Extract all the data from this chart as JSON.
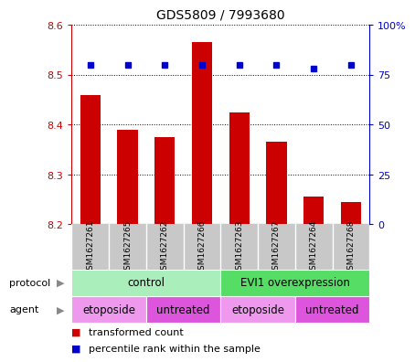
{
  "title": "GDS5809 / 7993680",
  "samples": [
    "GSM1627261",
    "GSM1627265",
    "GSM1627262",
    "GSM1627266",
    "GSM1627263",
    "GSM1627267",
    "GSM1627264",
    "GSM1627268"
  ],
  "bar_values": [
    8.46,
    8.39,
    8.375,
    8.565,
    8.425,
    8.365,
    8.255,
    8.245
  ],
  "bar_bottom": 8.2,
  "dot_values_pct": [
    80,
    80,
    80,
    80,
    80,
    80,
    78,
    80
  ],
  "ylim_left": [
    8.2,
    8.6
  ],
  "ylim_right": [
    0,
    100
  ],
  "yticks_left": [
    8.2,
    8.3,
    8.4,
    8.5,
    8.6
  ],
  "yticks_right": [
    0,
    25,
    50,
    75,
    100
  ],
  "bar_color": "#cc0000",
  "dot_color": "#0000cc",
  "bar_width": 0.55,
  "protocol_labels": [
    {
      "text": "control",
      "start": 0,
      "end": 3,
      "color": "#aaeebb"
    },
    {
      "text": "EVI1 overexpression",
      "start": 4,
      "end": 7,
      "color": "#55dd66"
    }
  ],
  "agent_labels": [
    {
      "text": "etoposide",
      "start": 0,
      "end": 1,
      "color": "#ee99ee"
    },
    {
      "text": "untreated",
      "start": 2,
      "end": 3,
      "color": "#dd55dd"
    },
    {
      "text": "etoposide",
      "start": 4,
      "end": 5,
      "color": "#ee99ee"
    },
    {
      "text": "untreated",
      "start": 6,
      "end": 7,
      "color": "#dd55dd"
    }
  ],
  "row_label_protocol": "protocol",
  "row_label_agent": "agent",
  "legend_bar_label": "transformed count",
  "legend_dot_label": "percentile rank within the sample",
  "sample_bg_color": "#c8c8c8",
  "grid_color": "#000000"
}
